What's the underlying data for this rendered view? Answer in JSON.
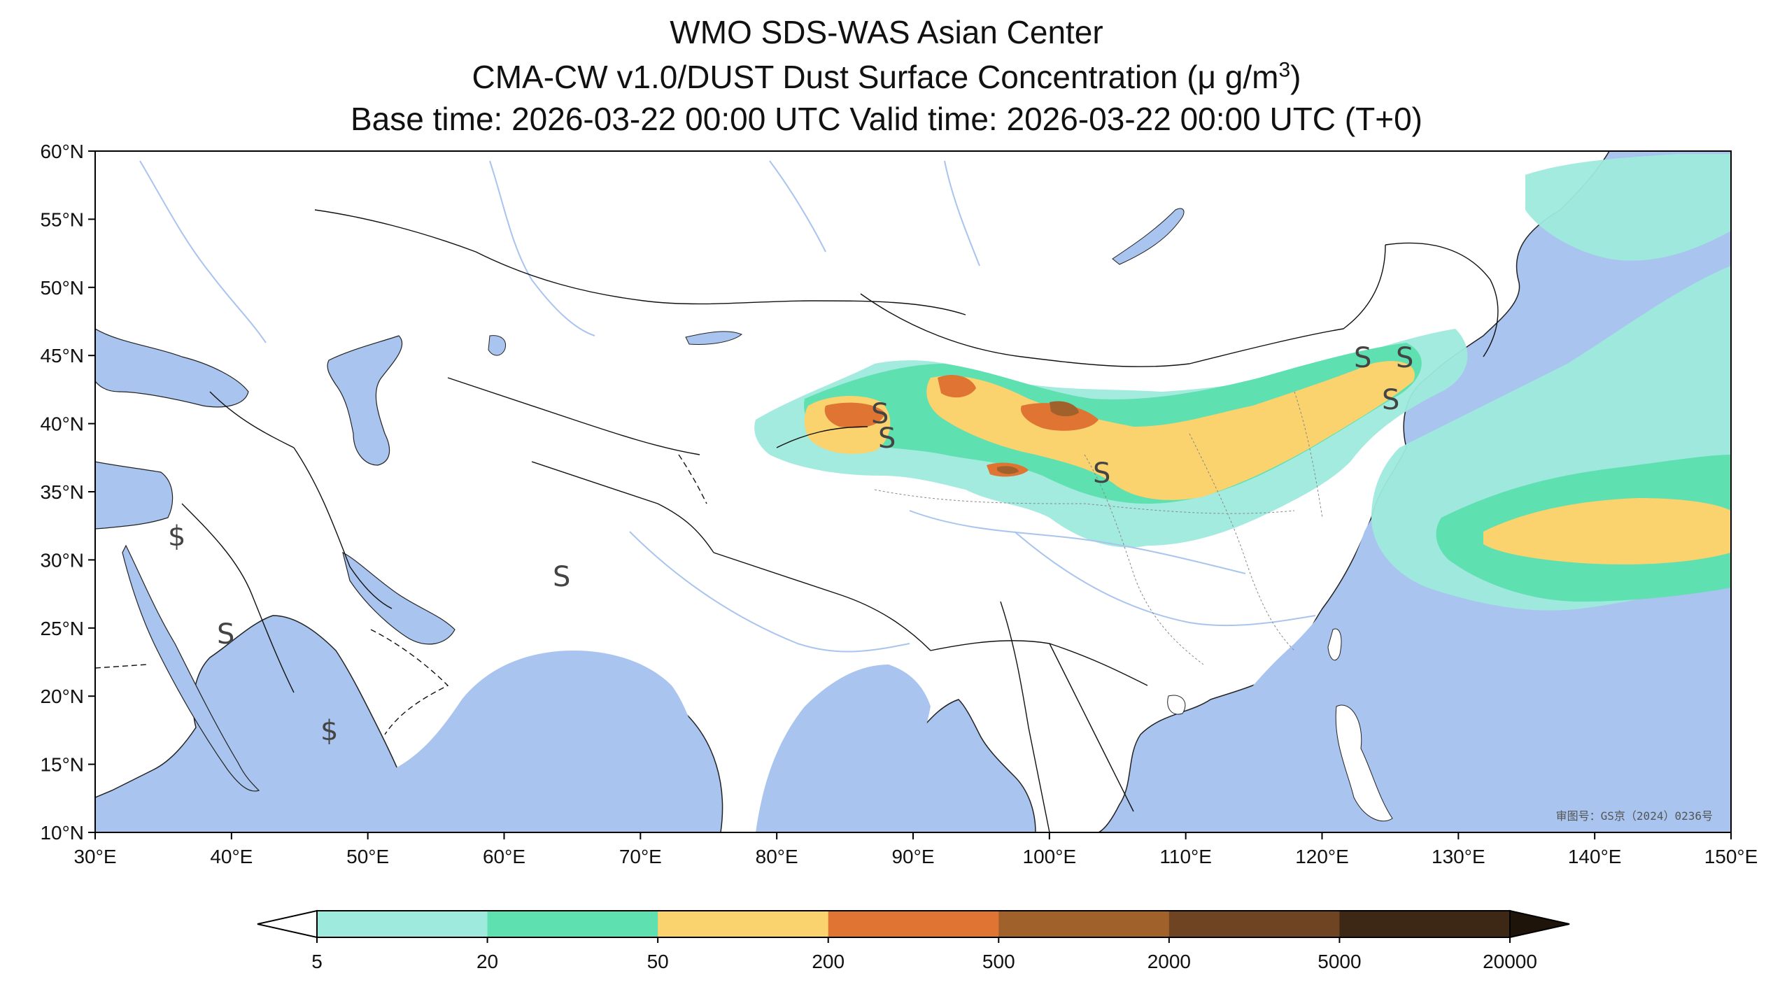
{
  "title": {
    "line1": "WMO SDS-WAS Asian Center",
    "line2_prefix": "CMA-CW v1.0/DUST Dust Surface Concentration (",
    "line2_unit": "μ g/m",
    "line2_sup": "3",
    "line2_suffix": ")",
    "line3": "Base time: 2026-03-22 00:00 UTC Valid time: 2026-03-22 00:00 UTC (T+0)"
  },
  "map": {
    "lon_range": [
      30,
      150
    ],
    "lat_range": [
      10,
      60
    ],
    "lon_ticks": [
      "30°E",
      "40°E",
      "50°E",
      "60°E",
      "70°E",
      "80°E",
      "90°E",
      "100°E",
      "110°E",
      "120°E",
      "130°E",
      "140°E",
      "150°E"
    ],
    "lat_ticks": [
      "60°N",
      "55°N",
      "50°N",
      "45°N",
      "40°N",
      "35°N",
      "30°N",
      "25°N",
      "20°N",
      "15°N",
      "10°N"
    ],
    "approval_stamp": "审图号：GS京（2024）0236号",
    "colors": {
      "ocean": "#a9c4ee",
      "land": "#ffffff",
      "border": "#000000",
      "river": "#a9c4ee"
    }
  },
  "colorbar": {
    "labels": [
      "5",
      "20",
      "50",
      "200",
      "500",
      "2000",
      "5000",
      "20000"
    ],
    "colors": [
      "#9eeadc",
      "#5ee0b0",
      "#fad26e",
      "#e07432",
      "#a0622a",
      "#6e4422",
      "#3c2814"
    ],
    "under_color": "#ffffff",
    "over_color": "#1e140a"
  }
}
